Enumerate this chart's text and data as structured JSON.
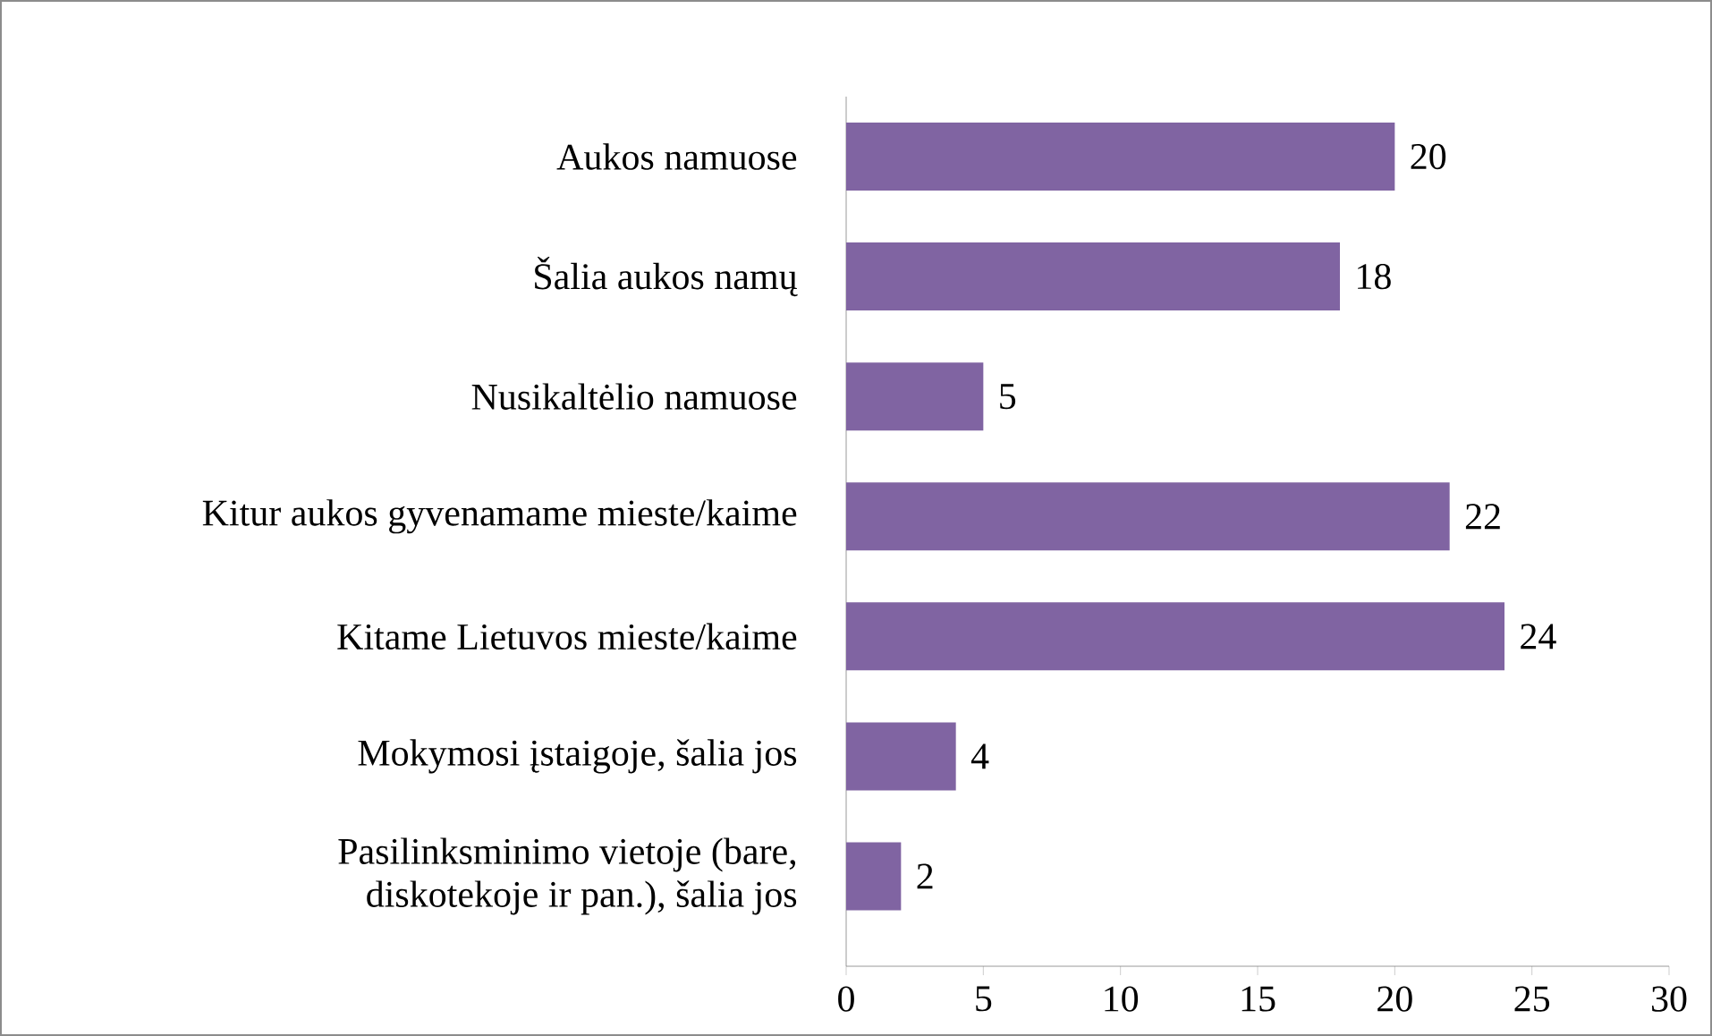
{
  "chart_data": {
    "type": "bar",
    "orientation": "horizontal",
    "categories": [
      "Aukos namuose",
      "Šalia aukos namų",
      "Nusikaltėlio namuose",
      "Kitur aukos gyvenamame mieste/kaime",
      "Kitame Lietuvos mieste/kaime",
      "Mokymosi įstaigoje, šalia jos",
      "Pasilinksminimo vietoje (bare, diskotekoje ir pan.), šalia jos"
    ],
    "values": [
      20,
      18,
      5,
      22,
      24,
      4,
      2
    ],
    "color": "#8064a2",
    "xlim": [
      0,
      30
    ],
    "xticks": [
      0,
      5,
      10,
      15,
      20,
      25,
      30
    ],
    "data_labels": true
  }
}
